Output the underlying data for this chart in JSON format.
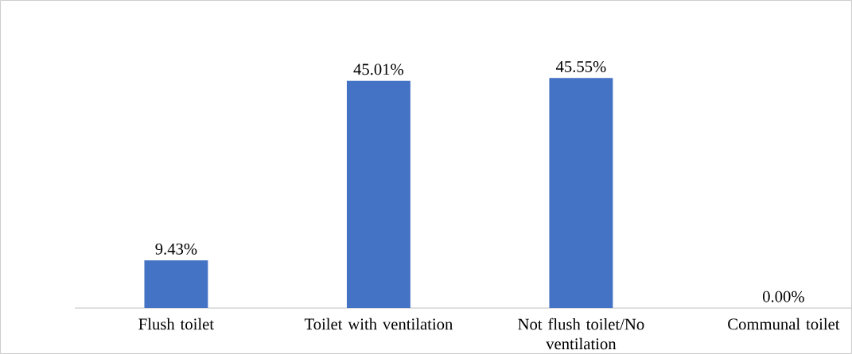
{
  "chart_data": {
    "type": "bar",
    "categories": [
      "Flush toilet",
      "Toilet with ventilation",
      "Not flush toilet/No ventilation",
      "Communal toilet"
    ],
    "values": [
      9.43,
      45.01,
      45.55,
      0.0
    ],
    "value_labels": [
      "9.43%",
      "45.01%",
      "45.55%",
      "0.00%"
    ],
    "color": "#4472c4",
    "grid": false
  }
}
